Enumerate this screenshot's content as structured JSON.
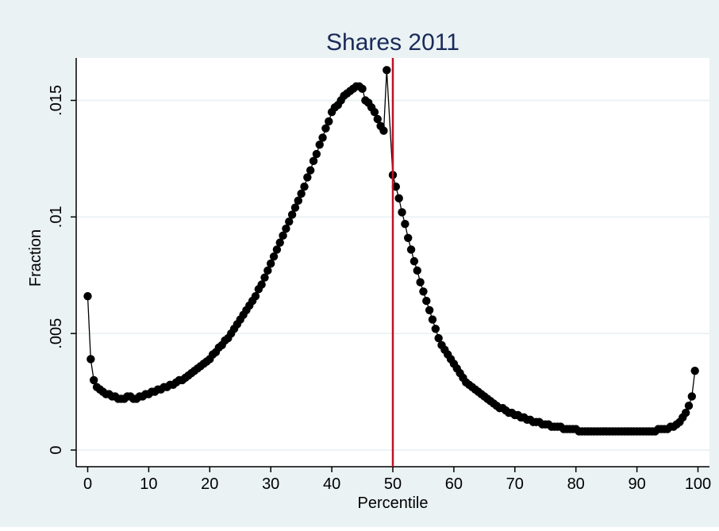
{
  "chart_data": {
    "type": "line",
    "title": "Shares 2011",
    "xlabel": "Percentile",
    "ylabel": "Fraction",
    "xlim": [
      0,
      100
    ],
    "ylim": [
      0,
      0.016
    ],
    "x_ticks": [
      {
        "value": 0,
        "label": "0"
      },
      {
        "value": 10,
        "label": "10"
      },
      {
        "value": 20,
        "label": "20"
      },
      {
        "value": 30,
        "label": "30"
      },
      {
        "value": 40,
        "label": "40"
      },
      {
        "value": 50,
        "label": "50"
      },
      {
        "value": 60,
        "label": "60"
      },
      {
        "value": 70,
        "label": "70"
      },
      {
        "value": 80,
        "label": "80"
      },
      {
        "value": 90,
        "label": "90"
      },
      {
        "value": 100,
        "label": "100"
      }
    ],
    "y_ticks": [
      {
        "value": 0,
        "label": "0"
      },
      {
        "value": 0.005,
        "label": ".005"
      },
      {
        "value": 0.01,
        "label": ".01"
      },
      {
        "value": 0.015,
        "label": ".015"
      }
    ],
    "grid": true,
    "reference_line": {
      "x": 50,
      "color": "#c0102a"
    },
    "colors": {
      "outer_background": "#eaf2f3",
      "plot_background": "#ffffff",
      "series": "#000000",
      "title": "#1a2a5a",
      "grid": "#e6f0f2"
    },
    "series": [
      {
        "markers": true,
        "points": [
          [
            0,
            0.0066
          ],
          [
            0.5,
            0.0039
          ],
          [
            1,
            0.003
          ],
          [
            1.5,
            0.0027
          ],
          [
            2,
            0.0026
          ],
          [
            2.5,
            0.0025
          ],
          [
            3,
            0.0024
          ],
          [
            3.5,
            0.0024
          ],
          [
            4,
            0.0023
          ],
          [
            4.5,
            0.0023
          ],
          [
            5,
            0.0022
          ],
          [
            5.5,
            0.0022
          ],
          [
            6,
            0.0022
          ],
          [
            6.5,
            0.0023
          ],
          [
            7,
            0.0023
          ],
          [
            7.5,
            0.0022
          ],
          [
            8,
            0.0022
          ],
          [
            8.5,
            0.0023
          ],
          [
            9,
            0.0023
          ],
          [
            9.5,
            0.0024
          ],
          [
            10,
            0.0024
          ],
          [
            10.5,
            0.0025
          ],
          [
            11,
            0.0025
          ],
          [
            11.5,
            0.0026
          ],
          [
            12,
            0.0026
          ],
          [
            12.5,
            0.0027
          ],
          [
            13,
            0.0027
          ],
          [
            13.5,
            0.0028
          ],
          [
            14,
            0.0028
          ],
          [
            14.5,
            0.0029
          ],
          [
            15,
            0.003
          ],
          [
            15.5,
            0.003
          ],
          [
            16,
            0.0031
          ],
          [
            16.5,
            0.0032
          ],
          [
            17,
            0.0033
          ],
          [
            17.5,
            0.0034
          ],
          [
            18,
            0.0035
          ],
          [
            18.5,
            0.0036
          ],
          [
            19,
            0.0037
          ],
          [
            19.5,
            0.0038
          ],
          [
            20,
            0.0039
          ],
          [
            20.5,
            0.0041
          ],
          [
            21,
            0.0042
          ],
          [
            21.5,
            0.0044
          ],
          [
            22,
            0.0045
          ],
          [
            22.5,
            0.0047
          ],
          [
            23,
            0.0048
          ],
          [
            23.5,
            0.005
          ],
          [
            24,
            0.0052
          ],
          [
            24.5,
            0.0054
          ],
          [
            25,
            0.0056
          ],
          [
            25.5,
            0.0058
          ],
          [
            26,
            0.006
          ],
          [
            26.5,
            0.0062
          ],
          [
            27,
            0.0064
          ],
          [
            27.5,
            0.0066
          ],
          [
            28,
            0.0069
          ],
          [
            28.5,
            0.0071
          ],
          [
            29,
            0.0074
          ],
          [
            29.5,
            0.0077
          ],
          [
            30,
            0.008
          ],
          [
            30.5,
            0.0083
          ],
          [
            31,
            0.0086
          ],
          [
            31.5,
            0.0089
          ],
          [
            32,
            0.0092
          ],
          [
            32.5,
            0.0095
          ],
          [
            33,
            0.0098
          ],
          [
            33.5,
            0.0101
          ],
          [
            34,
            0.0104
          ],
          [
            34.5,
            0.0107
          ],
          [
            35,
            0.011
          ],
          [
            35.5,
            0.0113
          ],
          [
            36,
            0.0117
          ],
          [
            36.5,
            0.012
          ],
          [
            37,
            0.0124
          ],
          [
            37.5,
            0.0127
          ],
          [
            38,
            0.0131
          ],
          [
            38.5,
            0.0134
          ],
          [
            39,
            0.0138
          ],
          [
            39.5,
            0.0141
          ],
          [
            40,
            0.0145
          ],
          [
            40.5,
            0.0147
          ],
          [
            41,
            0.0148
          ],
          [
            41.5,
            0.015
          ],
          [
            42,
            0.0152
          ],
          [
            42.5,
            0.0153
          ],
          [
            43,
            0.0154
          ],
          [
            43.5,
            0.0155
          ],
          [
            44,
            0.0156
          ],
          [
            44.5,
            0.0156
          ],
          [
            45,
            0.0155
          ],
          [
            45.5,
            0.015
          ],
          [
            46,
            0.0149
          ],
          [
            46.5,
            0.0147
          ],
          [
            47,
            0.0145
          ],
          [
            47.5,
            0.0142
          ],
          [
            48,
            0.0139
          ],
          [
            48.5,
            0.0137
          ],
          [
            49,
            0.0163
          ],
          [
            50,
            0.0118
          ],
          [
            50.5,
            0.0113
          ],
          [
            51,
            0.0108
          ],
          [
            51.5,
            0.0102
          ],
          [
            52,
            0.0097
          ],
          [
            52.5,
            0.0091
          ],
          [
            53,
            0.0086
          ],
          [
            53.5,
            0.0081
          ],
          [
            54,
            0.0077
          ],
          [
            54.5,
            0.0072
          ],
          [
            55,
            0.0068
          ],
          [
            55.5,
            0.0064
          ],
          [
            56,
            0.006
          ],
          [
            56.5,
            0.0056
          ],
          [
            57,
            0.0052
          ],
          [
            57.5,
            0.0048
          ],
          [
            58,
            0.0045
          ],
          [
            58.5,
            0.0043
          ],
          [
            59,
            0.0041
          ],
          [
            59.5,
            0.0039
          ],
          [
            60,
            0.0037
          ],
          [
            60.5,
            0.0035
          ],
          [
            61,
            0.0033
          ],
          [
            61.5,
            0.0031
          ],
          [
            62,
            0.0029
          ],
          [
            62.5,
            0.0028
          ],
          [
            63,
            0.0027
          ],
          [
            63.5,
            0.0026
          ],
          [
            64,
            0.0025
          ],
          [
            64.5,
            0.0024
          ],
          [
            65,
            0.0023
          ],
          [
            65.5,
            0.0022
          ],
          [
            66,
            0.0021
          ],
          [
            66.5,
            0.002
          ],
          [
            67,
            0.0019
          ],
          [
            67.5,
            0.0018
          ],
          [
            68,
            0.0018
          ],
          [
            68.5,
            0.0017
          ],
          [
            69,
            0.0016
          ],
          [
            69.5,
            0.0016
          ],
          [
            70,
            0.0015
          ],
          [
            70.5,
            0.0015
          ],
          [
            71,
            0.0014
          ],
          [
            71.5,
            0.0014
          ],
          [
            72,
            0.0013
          ],
          [
            72.5,
            0.0013
          ],
          [
            73,
            0.0012
          ],
          [
            73.5,
            0.0012
          ],
          [
            74,
            0.0012
          ],
          [
            74.5,
            0.0011
          ],
          [
            75,
            0.0011
          ],
          [
            75.5,
            0.0011
          ],
          [
            76,
            0.001
          ],
          [
            76.5,
            0.001
          ],
          [
            77,
            0.001
          ],
          [
            77.5,
            0.001
          ],
          [
            78,
            0.0009
          ],
          [
            78.5,
            0.0009
          ],
          [
            79,
            0.0009
          ],
          [
            79.5,
            0.0009
          ],
          [
            80,
            0.0009
          ],
          [
            80.5,
            0.0008
          ],
          [
            81,
            0.0008
          ],
          [
            81.5,
            0.0008
          ],
          [
            82,
            0.0008
          ],
          [
            82.5,
            0.0008
          ],
          [
            83,
            0.0008
          ],
          [
            83.5,
            0.0008
          ],
          [
            84,
            0.0008
          ],
          [
            84.5,
            0.0008
          ],
          [
            85,
            0.0008
          ],
          [
            85.5,
            0.0008
          ],
          [
            86,
            0.0008
          ],
          [
            86.5,
            0.0008
          ],
          [
            87,
            0.0008
          ],
          [
            87.5,
            0.0008
          ],
          [
            88,
            0.0008
          ],
          [
            88.5,
            0.0008
          ],
          [
            89,
            0.0008
          ],
          [
            89.5,
            0.0008
          ],
          [
            90,
            0.0008
          ],
          [
            90.5,
            0.0008
          ],
          [
            91,
            0.0008
          ],
          [
            91.5,
            0.0008
          ],
          [
            92,
            0.0008
          ],
          [
            92.5,
            0.0008
          ],
          [
            93,
            0.0008
          ],
          [
            93.5,
            0.0009
          ],
          [
            94,
            0.0009
          ],
          [
            94.5,
            0.0009
          ],
          [
            95,
            0.0009
          ],
          [
            95.5,
            0.001
          ],
          [
            96,
            0.001
          ],
          [
            96.5,
            0.0011
          ],
          [
            97,
            0.0012
          ],
          [
            97.5,
            0.0014
          ],
          [
            98,
            0.0016
          ],
          [
            98.5,
            0.0019
          ],
          [
            99,
            0.0023
          ],
          [
            99.5,
            0.0034
          ]
        ]
      }
    ]
  }
}
